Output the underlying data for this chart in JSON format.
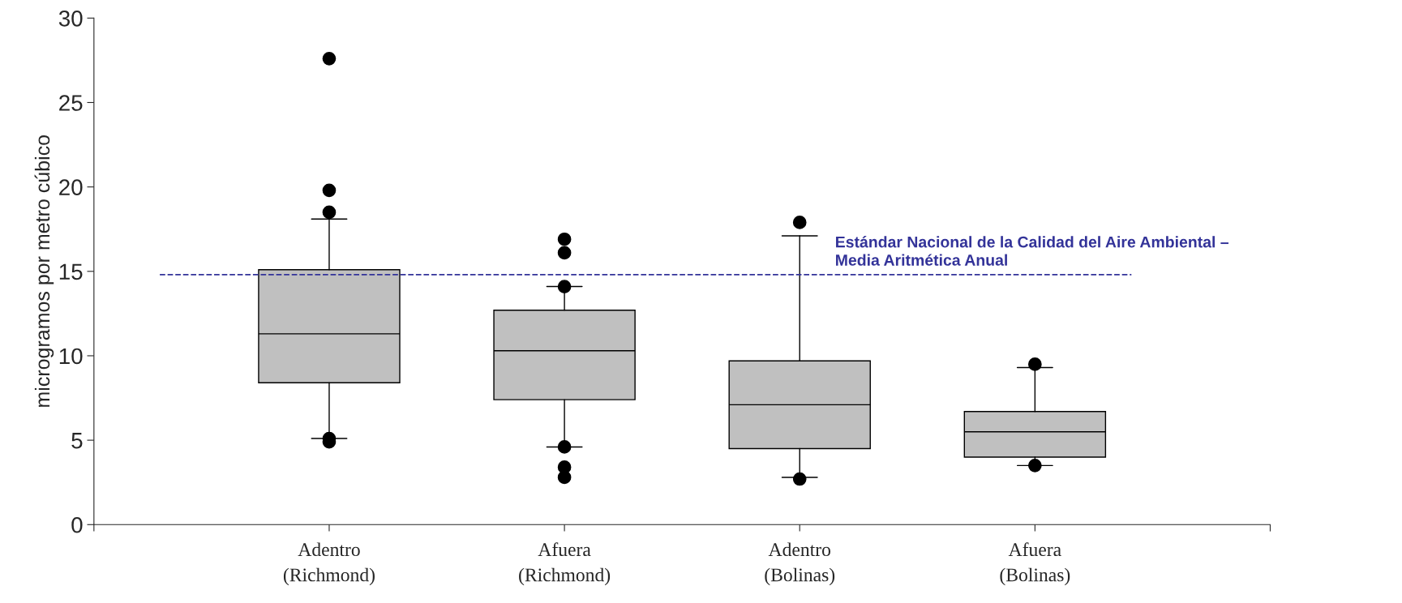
{
  "chart_data": {
    "type": "box",
    "ylabel": "microgramos por metro cúbico",
    "categories": [
      "Adentro\n(Richmond)",
      "Afuera\n(Richmond)",
      "Adentro\n(Bolinas)",
      "Afuera\n(Bolinas)"
    ],
    "boxes": [
      {
        "low": 5.1,
        "q1": 8.4,
        "median": 11.3,
        "q3": 15.1,
        "high": 18.1,
        "outliers": [
          27.6,
          19.8,
          18.5,
          5.1,
          4.9
        ]
      },
      {
        "low": 4.6,
        "q1": 7.4,
        "median": 10.3,
        "q3": 12.7,
        "high": 14.1,
        "outliers": [
          16.9,
          16.1,
          14.1,
          4.6,
          3.4,
          2.8
        ]
      },
      {
        "low": 2.8,
        "q1": 4.5,
        "median": 7.1,
        "q3": 9.7,
        "high": 17.1,
        "outliers": [
          17.9,
          2.7
        ]
      },
      {
        "low": 3.5,
        "q1": 4.0,
        "median": 5.5,
        "q3": 6.7,
        "high": 9.3,
        "outliers": [
          9.5,
          3.5
        ]
      }
    ],
    "color": "#c0c0c0",
    "ylim": [
      0,
      30
    ],
    "yticks": [
      0,
      5,
      10,
      15,
      20,
      25,
      30
    ],
    "ref_lines": [
      {
        "axis": "y",
        "value": 14.8,
        "label": "Estándar Nacional de la Calidad del Aire Ambiental –\nMedia Aritmética Anual",
        "color": "#333399",
        "line_style": "dashed"
      }
    ],
    "grid": false,
    "legend": false
  }
}
